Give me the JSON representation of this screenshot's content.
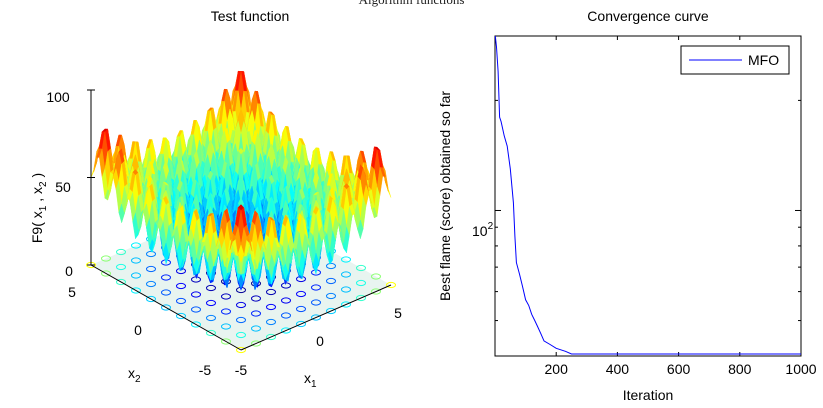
{
  "figure": {
    "title": "Algorithm functions"
  },
  "chart_data": [
    {
      "type": "surface3d",
      "title": "Test function",
      "xlabel": "x_1",
      "ylabel": "x_2",
      "zlabel": "F9( x_1 , x_2 )",
      "xlim": [
        -5,
        5
      ],
      "ylim": [
        -5,
        5
      ],
      "zlim": [
        0,
        100
      ],
      "xticks": [
        "-5",
        "0",
        "5"
      ],
      "yticks": [
        "5",
        "0",
        "-5"
      ],
      "zticks": [
        "0",
        "50",
        "100"
      ],
      "colormap": "jet",
      "contour_projection": true,
      "function": "Rastrigin"
    },
    {
      "type": "line",
      "title": "Convergence curve",
      "xlabel": "Iteration",
      "ylabel": "Best flame (score) obtained so far",
      "yscale": "log",
      "xlim": [
        0,
        1000
      ],
      "ylim": [
        40,
        300
      ],
      "xticks": [
        "200",
        "400",
        "600",
        "800",
        "1000"
      ],
      "yticks": [
        {
          "base": "10",
          "exp": "2"
        }
      ],
      "legend": "top-right",
      "color": "#0000ff",
      "series": [
        {
          "name": "MFO",
          "x": [
            1,
            5,
            10,
            15,
            20,
            30,
            40,
            50,
            60,
            65,
            70,
            80,
            90,
            100,
            110,
            120,
            130,
            140,
            150,
            160,
            180,
            200,
            230,
            250,
            300,
            400,
            600,
            800,
            1000
          ],
          "y": [
            300,
            280,
            240,
            180,
            175,
            160,
            150,
            130,
            105,
            85,
            72,
            67,
            62,
            57,
            55,
            52,
            50,
            48,
            46,
            44,
            43,
            42,
            41.2,
            40.5,
            40.5,
            40.5,
            40.5,
            40.5,
            40.5
          ]
        }
      ]
    }
  ]
}
